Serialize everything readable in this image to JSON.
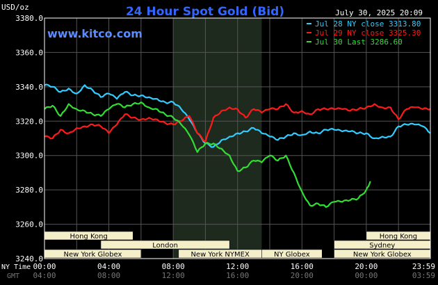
{
  "header": {
    "unit": "USD/oz",
    "title": "24 Hour Spot Gold (Bid)",
    "datetime": "July 30, 2025 20:09",
    "website": "www.kitco.com"
  },
  "legend": [
    {
      "label": "Jul 28 NY close 3313.80",
      "color": "#33ccff"
    },
    {
      "label": "Jul 29 NY close 3325.30",
      "color": "#ff1a1a"
    },
    {
      "label": "Jul 30 Last 3286.60",
      "color": "#33dd33"
    }
  ],
  "y_ticks": [
    "3380.0",
    "3360.0",
    "3340.0",
    "3320.0",
    "3300.0",
    "3280.0",
    "3260.0",
    "3240.0"
  ],
  "x_row_label_ny": "NY Time",
  "x_row_label_gmt": "GMT",
  "x_ticks_ny": [
    "00:00",
    "04:00",
    "08:00",
    "12:00",
    "16:00",
    "20:00",
    "23:59"
  ],
  "x_ticks_gmt": [
    "04:00",
    "08:00",
    "12:00",
    "16:00",
    "20:00",
    "00:00",
    "03:59"
  ],
  "sessions": [
    {
      "label": "Hong Kong",
      "start": 0,
      "end": 5.5,
      "row": 0
    },
    {
      "label": "London",
      "start": 3.5,
      "end": 11.5,
      "row": 1
    },
    {
      "label": "New York Globex",
      "start": 0,
      "end": 6.0,
      "row": 2
    },
    {
      "label": "New York NYMEX",
      "start": 8.33,
      "end": 13.5,
      "row": 2
    },
    {
      "label": "NY Globex",
      "start": 13.5,
      "end": 17.25,
      "row": 2
    },
    {
      "label": "Hong Kong",
      "start": 20.0,
      "end": 23.98,
      "row": 0
    },
    {
      "label": "Sydney",
      "start": 18.0,
      "end": 23.98,
      "row": 1
    },
    {
      "label": "New York Globex",
      "start": 18.0,
      "end": 23.98,
      "row": 2
    }
  ],
  "colors": {
    "background": "#000000",
    "frame": "#ffffff",
    "grid": "#555555",
    "highlight": "#1f2a1f",
    "title": "#3366ff",
    "website": "#5b8cff",
    "session_box": "#f4eec9",
    "session_text": "#000000",
    "tick_text": "#ffffff",
    "gmt_text": "#777777",
    "header_text": "#ffffff"
  },
  "chart_data": {
    "type": "line",
    "xlabel": "NY Time",
    "ylabel": "USD/oz",
    "xlim": [
      0,
      23.98
    ],
    "ylim": [
      3240,
      3380
    ],
    "highlight_region": [
      8.0,
      13.5
    ],
    "grid": true,
    "legend_position": "top-right",
    "series": [
      {
        "name": "Jul 28 NY close 3313.80",
        "color": "#33ccff",
        "x": [
          0,
          0.5,
          1,
          1.5,
          2,
          2.5,
          3,
          3.5,
          4,
          4.5,
          5,
          5.5,
          6,
          6.5,
          7,
          7.5,
          8,
          8.5,
          9,
          9.5,
          10,
          10.5,
          11,
          11.5,
          12,
          12.5,
          13,
          13.5,
          14,
          14.5,
          15,
          15.5,
          16,
          16.5,
          17,
          17.5,
          18,
          18.5,
          19,
          19.5,
          20,
          20.5,
          21,
          21.5,
          22,
          22.5,
          23,
          23.5,
          23.98
        ],
        "y": [
          3341,
          3340,
          3337,
          3339,
          3336,
          3341,
          3338,
          3334,
          3336,
          3333,
          3337,
          3335,
          3335,
          3334,
          3333,
          3331,
          3331,
          3327,
          3321,
          3313,
          3307,
          3305,
          3309,
          3311,
          3313,
          3314,
          3316,
          3313,
          3311,
          3309,
          3311,
          3313,
          3312,
          3314,
          3313,
          3315,
          3315,
          3314,
          3314,
          3313,
          3313,
          3310,
          3311,
          3311,
          3317,
          3318,
          3318,
          3317,
          3313
        ]
      },
      {
        "name": "Jul 29 NY close 3325.30",
        "color": "#ff1a1a",
        "x": [
          0,
          0.5,
          1,
          1.5,
          2,
          2.5,
          3,
          3.5,
          4,
          4.5,
          5,
          5.5,
          6,
          6.5,
          7,
          7.5,
          8,
          8.5,
          9,
          9.5,
          10,
          10.5,
          11,
          11.5,
          12,
          12.5,
          13,
          13.5,
          14,
          14.5,
          15,
          15.5,
          16,
          16.5,
          17,
          17.5,
          18,
          18.5,
          19,
          19.5,
          20,
          20.5,
          21,
          21.5,
          22,
          22.5,
          23,
          23.5,
          23.98
        ],
        "y": [
          3311,
          3310,
          3315,
          3313,
          3316,
          3317,
          3318,
          3317,
          3313,
          3318,
          3324,
          3322,
          3321,
          3322,
          3321,
          3319,
          3318,
          3320,
          3323,
          3313,
          3308,
          3322,
          3326,
          3328,
          3327,
          3322,
          3327,
          3325,
          3327,
          3327,
          3330,
          3325,
          3326,
          3324,
          3327,
          3327,
          3327,
          3327,
          3326,
          3327,
          3328,
          3330,
          3328,
          3328,
          3321,
          3327,
          3328,
          3327,
          3327
        ]
      },
      {
        "name": "Jul 30 Last 3286.60",
        "color": "#33dd33",
        "x": [
          0,
          0.5,
          1,
          1.5,
          2,
          2.5,
          3,
          3.5,
          4,
          4.5,
          5,
          5.5,
          6,
          6.5,
          7,
          7.5,
          8,
          8.5,
          9,
          9.5,
          10,
          10.5,
          11,
          11.5,
          12,
          12.5,
          13,
          13.5,
          14,
          14.5,
          15,
          15.5,
          16,
          16.5,
          17,
          17.5,
          18,
          18.5,
          19,
          19.5,
          20,
          20.25
        ],
        "y": [
          3327,
          3329,
          3323,
          3330,
          3327,
          3326,
          3324,
          3323,
          3327,
          3330,
          3328,
          3330,
          3331,
          3328,
          3327,
          3324,
          3322,
          3318,
          3312,
          3302,
          3307,
          3307,
          3304,
          3300,
          3291,
          3293,
          3297,
          3296,
          3300,
          3297,
          3300,
          3290,
          3279,
          3271,
          3272,
          3270,
          3273,
          3273,
          3274,
          3275,
          3280,
          3285
        ]
      }
    ]
  }
}
